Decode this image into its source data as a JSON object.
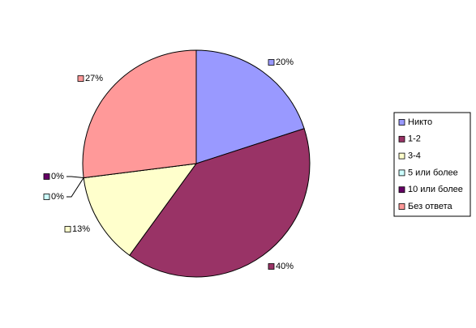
{
  "chart_data": {
    "type": "pie",
    "categories": [
      "Никто",
      "1-2",
      "3-4",
      "5 или более",
      "10 или более",
      "Без ответа"
    ],
    "values": [
      20,
      40,
      13,
      0,
      0,
      27
    ],
    "value_labels": [
      "20%",
      "40%",
      "13%",
      "0%",
      "0%",
      "27%"
    ],
    "colors": [
      "#9999ff",
      "#993366",
      "#ffffcc",
      "#ccffff",
      "#660066",
      "#ff9999"
    ]
  }
}
